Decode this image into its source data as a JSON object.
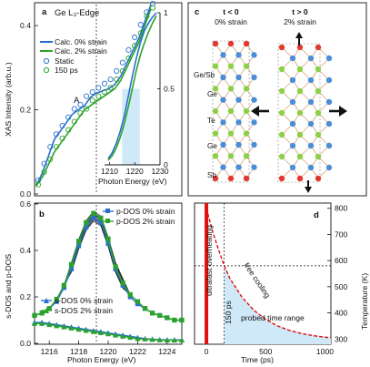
{
  "panels": {
    "a": {
      "label": "a"
    },
    "b": {
      "label": "b"
    },
    "c": {
      "label": "c"
    },
    "d": {
      "label": "d"
    }
  },
  "colors": {
    "blue": "#2a6fd0",
    "green": "#2aa32a",
    "red": "#e01010",
    "highlight": "#cfe9f8",
    "black": "#111111"
  },
  "chart_data": [
    {
      "panel": "a",
      "type": "line",
      "title": "Ge L₃-Edge",
      "xlabel": "",
      "ylabel": "XAS Intensity (arb.u.)",
      "ylim": [
        0,
        0.45
      ],
      "yticks": [
        "0.0",
        "0.2",
        "0.4"
      ],
      "annotation": "A",
      "series": [
        {
          "name": "Calc. 0% strain",
          "style": "line",
          "color": "#2a6fd0",
          "y": [
            0.02,
            0.05,
            0.09,
            0.13,
            0.15,
            0.17,
            0.19,
            0.2,
            0.21,
            0.23,
            0.24,
            0.245,
            0.25,
            0.26,
            0.28,
            0.31,
            0.34,
            0.37,
            0.41,
            0.45
          ]
        },
        {
          "name": "Calc. 2% strain",
          "style": "line",
          "color": "#2aa32a",
          "y": [
            0.02,
            0.04,
            0.07,
            0.1,
            0.12,
            0.14,
            0.16,
            0.18,
            0.2,
            0.21,
            0.22,
            0.23,
            0.24,
            0.25,
            0.27,
            0.3,
            0.33,
            0.36,
            0.4,
            0.44
          ]
        },
        {
          "name": "Static",
          "style": "markers",
          "color": "#2a6fd0",
          "y": [
            0.03,
            0.07,
            0.11,
            0.14,
            0.16,
            0.18,
            0.2,
            0.21,
            0.23,
            0.24,
            0.25,
            0.26,
            0.27,
            0.29,
            0.31,
            0.34,
            0.37,
            0.4,
            0.43,
            0.45
          ]
        },
        {
          "name": "150 ps",
          "style": "markers",
          "color": "#2aa32a",
          "y": [
            0.02,
            0.05,
            0.08,
            0.11,
            0.13,
            0.15,
            0.17,
            0.19,
            0.2,
            0.22,
            0.23,
            0.24,
            0.25,
            0.27,
            0.29,
            0.32,
            0.35,
            0.38,
            0.42,
            0.44
          ]
        }
      ],
      "inset": {
        "xlabel": "Photon Energy (eV)",
        "xlim": [
          1208,
          1230
        ],
        "xticks": [
          "1210",
          "1220",
          "1230"
        ],
        "ylim": [
          0,
          1
        ],
        "yticks": [
          "0",
          "0.5",
          "1"
        ],
        "highlight_range": [
          1215,
          1222
        ],
        "calc0_y": [
          0.04,
          0.08,
          0.14,
          0.22,
          0.32,
          0.45,
          0.58,
          0.7,
          0.8,
          0.88,
          0.93,
          0.97,
          1.0
        ],
        "calc2_y": [
          0.03,
          0.06,
          0.11,
          0.18,
          0.27,
          0.38,
          0.5,
          0.62,
          0.72,
          0.8,
          0.87,
          0.93,
          0.98
        ]
      }
    },
    {
      "panel": "b",
      "type": "line",
      "xlabel": "Photon Energy (eV)",
      "ylabel": "s-DOS and p-DOS",
      "xlim": [
        1215,
        1225
      ],
      "xticks": [
        "1216",
        "1218",
        "1220",
        "1222",
        "1224"
      ],
      "ylim": [
        0,
        0.6
      ],
      "yticks": [
        "0.0",
        "0.2",
        "0.4",
        "0.6"
      ],
      "x": [
        1215,
        1215.5,
        1216,
        1216.5,
        1217,
        1217.5,
        1218,
        1218.5,
        1219,
        1219.5,
        1220,
        1220.5,
        1221,
        1221.5,
        1222,
        1222.5,
        1223,
        1223.5,
        1224,
        1224.5,
        1225
      ],
      "series": [
        {
          "name": "p-DOS 0% strain",
          "color": "#2a6fd0",
          "marker": "square",
          "values": [
            0.12,
            0.13,
            0.15,
            0.18,
            0.24,
            0.32,
            0.42,
            0.5,
            0.54,
            0.52,
            0.43,
            0.32,
            0.25,
            0.2,
            0.17,
            0.15,
            0.13,
            0.12,
            0.11,
            0.1,
            0.1
          ]
        },
        {
          "name": "p-DOS 2% strain",
          "color": "#2aa32a",
          "marker": "square",
          "values": [
            0.12,
            0.13,
            0.15,
            0.19,
            0.25,
            0.34,
            0.44,
            0.52,
            0.56,
            0.54,
            0.45,
            0.33,
            0.26,
            0.21,
            0.18,
            0.15,
            0.13,
            0.12,
            0.11,
            0.1,
            0.1
          ]
        },
        {
          "name": "s-DOS 0% strain",
          "color": "#2a6fd0",
          "marker": "triangle",
          "values": [
            0.09,
            0.09,
            0.085,
            0.08,
            0.075,
            0.07,
            0.065,
            0.06,
            0.055,
            0.05,
            0.045,
            0.04,
            0.035,
            0.03,
            0.025,
            0.02,
            0.018,
            0.016,
            0.015,
            0.015,
            0.015
          ]
        },
        {
          "name": "s-DOS 2% strain",
          "color": "#2aa32a",
          "marker": "triangle",
          "values": [
            0.085,
            0.085,
            0.08,
            0.075,
            0.07,
            0.065,
            0.06,
            0.055,
            0.05,
            0.045,
            0.04,
            0.035,
            0.03,
            0.025,
            0.02,
            0.018,
            0.016,
            0.014,
            0.013,
            0.013,
            0.013
          ]
        }
      ]
    },
    {
      "panel": "c",
      "type": "diagram",
      "left_title": "t < 0",
      "left_subtitle": "0% strain",
      "right_title": "t > 0",
      "right_subtitle": "2% strain",
      "layer_labels": [
        "Ge/Sb",
        "Ge",
        "Te",
        "Ge",
        "Sb"
      ]
    },
    {
      "panel": "d",
      "type": "line",
      "xlabel": "Time (ps)",
      "ylabel": "Temperature (K)",
      "xlim": [
        -100,
        1050
      ],
      "xticks": [
        "0",
        "500",
        "1000"
      ],
      "ylim": [
        280,
        820
      ],
      "yticks": [
        "300",
        "400",
        "500",
        "600",
        "700",
        "800"
      ],
      "dashed_markers": {
        "time_ps": 150,
        "temperature_K": 580
      },
      "annotations": {
        "overheating": "ultrafast overheating",
        "cooling": "free cooling",
        "delay": "150 ps",
        "probed": "probed time range"
      },
      "series": [
        {
          "name": "",
          "color": "#e01010",
          "x": [
            0,
            50,
            100,
            150,
            200,
            300,
            400,
            500,
            600,
            700,
            800,
            900,
            1000,
            1050
          ],
          "y": [
            800,
            715,
            645,
            580,
            530,
            460,
            410,
            375,
            350,
            333,
            321,
            313,
            307,
            305
          ]
        }
      ]
    }
  ]
}
